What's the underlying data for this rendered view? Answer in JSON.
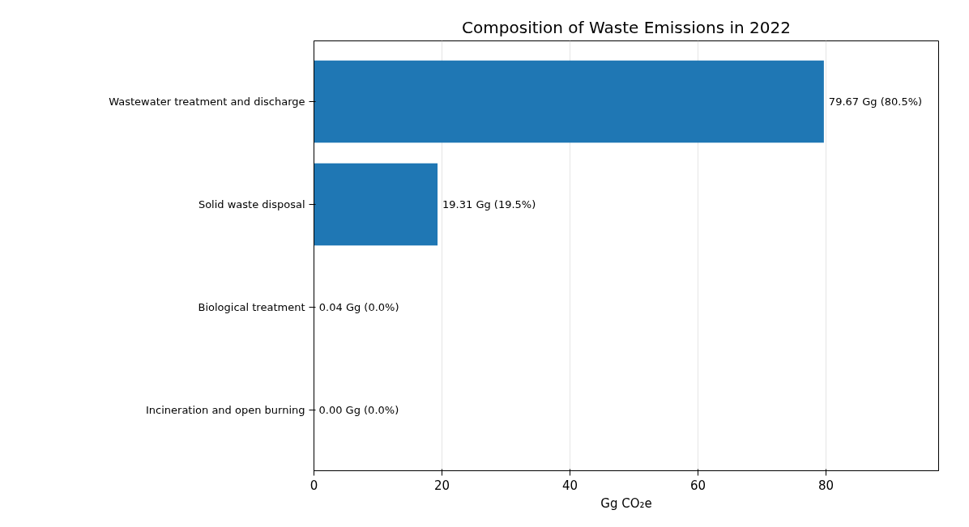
{
  "chart_data": {
    "type": "bar",
    "orientation": "horizontal",
    "title": "Composition of Waste Emissions in 2022",
    "xlabel": "Gg CO₂e",
    "categories": [
      "Wastewater treatment and discharge",
      "Solid waste disposal",
      "Biological treatment",
      "Incineration and open burning"
    ],
    "values": [
      79.67,
      19.31,
      0.04,
      0.0
    ],
    "value_labels": [
      "79.67 Gg (80.5%)",
      "19.31 Gg (19.5%)",
      "0.04 Gg (0.0%)",
      "0.00 Gg (0.0%)"
    ],
    "color": "#1f77b4",
    "xlim": [
      0,
      97.6
    ],
    "xticks": [
      0,
      20,
      40,
      60,
      80
    ],
    "grid": "x"
  }
}
